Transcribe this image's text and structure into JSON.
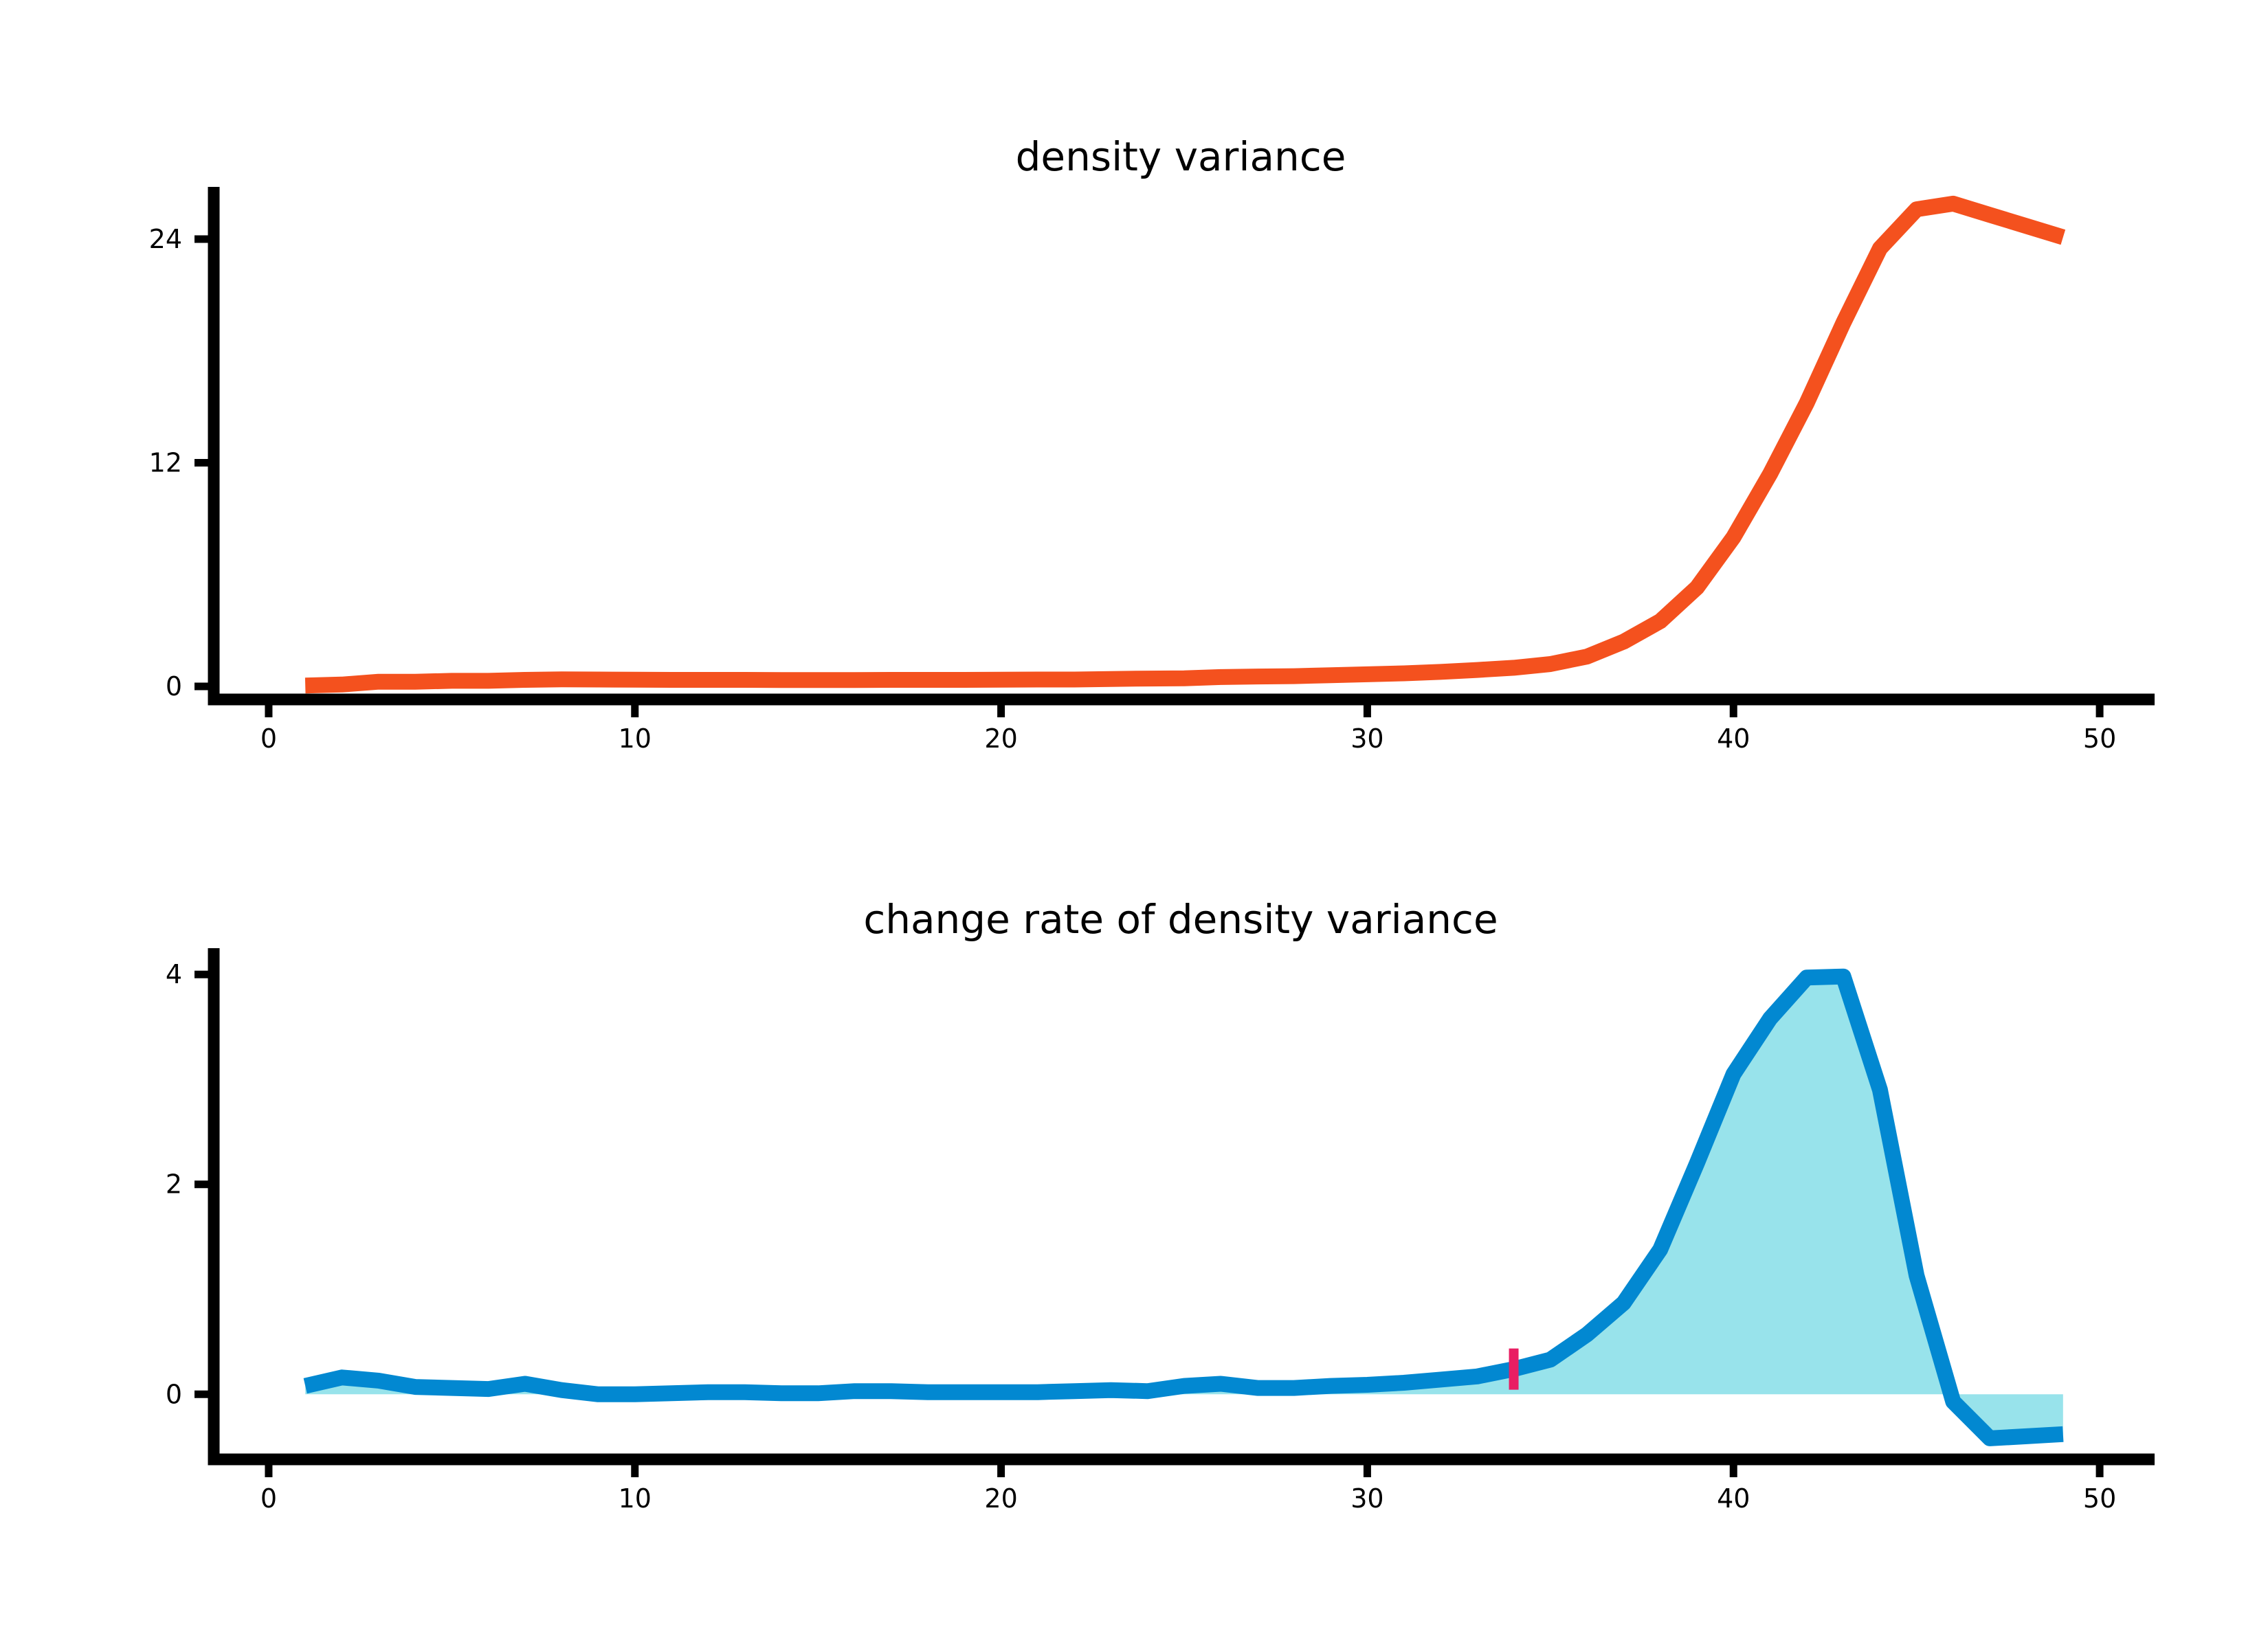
{
  "chart_data": [
    {
      "type": "line",
      "title": "density variance",
      "xlabel": "",
      "ylabel": "",
      "xlim": [
        -1.5,
        51.5
      ],
      "ylim": [
        -0.7,
        26.8
      ],
      "x_ticks": [
        0,
        10,
        20,
        30,
        40,
        50
      ],
      "y_ticks": [
        0,
        12,
        24
      ],
      "grid": false,
      "colors": {
        "line": "#f4511e",
        "axis": "#000000"
      },
      "series": [
        {
          "x": [
            1,
            2,
            3,
            4,
            5,
            6,
            7,
            8,
            9,
            10,
            11,
            12,
            13,
            14,
            15,
            16,
            17,
            18,
            19,
            20,
            21,
            22,
            23,
            24,
            25,
            26,
            27,
            28,
            29,
            30,
            31,
            32,
            33,
            34,
            35,
            36,
            37,
            38,
            39,
            40,
            41,
            42,
            43,
            44,
            45,
            46,
            47,
            48,
            49
          ],
          "y": [
            0.05,
            0.1,
            0.25,
            0.25,
            0.3,
            0.3,
            0.35,
            0.38,
            0.37,
            0.36,
            0.35,
            0.35,
            0.35,
            0.34,
            0.34,
            0.34,
            0.35,
            0.35,
            0.35,
            0.36,
            0.37,
            0.37,
            0.4,
            0.42,
            0.43,
            0.5,
            0.53,
            0.55,
            0.6,
            0.65,
            0.7,
            0.78,
            0.88,
            1.0,
            1.2,
            1.6,
            2.4,
            3.5,
            5.3,
            8.0,
            11.4,
            15.2,
            19.5,
            23.5,
            25.6,
            25.9,
            25.3,
            24.7,
            24.1
          ]
        }
      ]
    },
    {
      "type": "area",
      "title": "change rate of density variance",
      "xlabel": "",
      "ylabel": "",
      "xlim": [
        -1.5,
        51.5
      ],
      "ylim": [
        -0.62,
        4.25
      ],
      "x_ticks": [
        0,
        10,
        20,
        30,
        40,
        50
      ],
      "y_ticks": [
        0,
        2,
        4
      ],
      "grid": false,
      "marker_x": 34,
      "colors": {
        "line": "#0288d1",
        "fill": "#98e3eb",
        "marker": "#e91e63",
        "axis": "#000000"
      },
      "series": [
        {
          "x": [
            1,
            2,
            3,
            4,
            5,
            6,
            7,
            8,
            9,
            10,
            11,
            12,
            13,
            14,
            15,
            16,
            17,
            18,
            19,
            20,
            21,
            22,
            23,
            24,
            25,
            26,
            27,
            28,
            29,
            30,
            31,
            32,
            33,
            34,
            35,
            36,
            37,
            38,
            39,
            40,
            41,
            42,
            43,
            44,
            45,
            46,
            47,
            48,
            49
          ],
          "y": [
            0.08,
            0.16,
            0.13,
            0.07,
            0.06,
            0.05,
            0.1,
            0.04,
            0.0,
            0.0,
            0.01,
            0.02,
            0.02,
            0.01,
            0.01,
            0.03,
            0.03,
            0.02,
            0.02,
            0.02,
            0.02,
            0.03,
            0.04,
            0.03,
            0.08,
            0.1,
            0.06,
            0.06,
            0.08,
            0.09,
            0.11,
            0.14,
            0.17,
            0.24,
            0.33,
            0.57,
            0.87,
            1.38,
            2.2,
            3.05,
            3.58,
            3.97,
            3.98,
            2.9,
            1.13,
            -0.07,
            -0.42,
            -0.4,
            -0.38
          ]
        }
      ]
    }
  ]
}
